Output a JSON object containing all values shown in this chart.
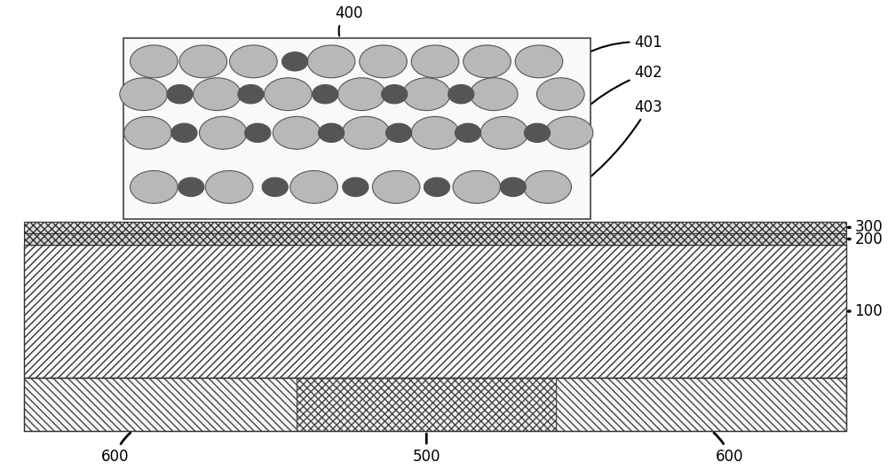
{
  "fig_width": 10.0,
  "fig_height": 5.3,
  "bg_color": "#ffffff",
  "large_ellipse_color": "#b8b8b8",
  "small_ellipse_color": "#555555",
  "label_fontsize": 12,
  "arrow_color": "#000000"
}
